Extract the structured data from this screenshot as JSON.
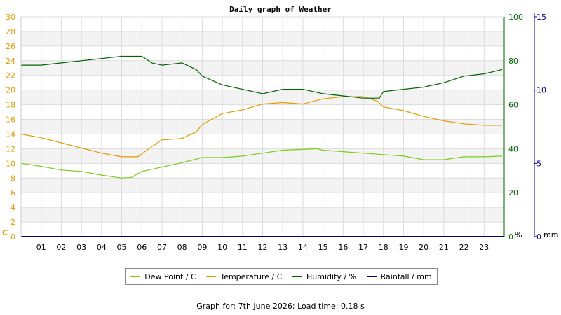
{
  "chart_data": {
    "type": "line",
    "title": "Daily graph of Weather",
    "x_ticks": [
      "01",
      "02",
      "03",
      "04",
      "05",
      "06",
      "07",
      "08",
      "09",
      "10",
      "11",
      "12",
      "13",
      "14",
      "15",
      "16",
      "17",
      "18",
      "19",
      "20",
      "21",
      "22",
      "23"
    ],
    "xlim": [
      0,
      24
    ],
    "axes": {
      "left": {
        "unit": "C",
        "ticks": [
          0,
          2,
          4,
          6,
          8,
          10,
          12,
          14,
          16,
          18,
          20,
          22,
          24,
          26,
          28,
          30
        ],
        "range": [
          0,
          30
        ],
        "color": "#e69a00"
      },
      "right1": {
        "unit": "%",
        "ticks": [
          0,
          20,
          40,
          60,
          80,
          100
        ],
        "range": [
          0,
          100
        ],
        "color": "#006400"
      },
      "right2": {
        "unit": "mm",
        "ticks": [
          0,
          5,
          10,
          15
        ],
        "range": [
          0,
          15
        ],
        "color": "#00008b"
      }
    },
    "series": [
      {
        "name": "Dew Point / C",
        "axis": "left",
        "color": "#7ccc1a",
        "x": [
          0,
          1,
          2,
          3,
          4,
          4.5,
          5,
          5.5,
          6,
          7,
          8,
          9,
          10,
          11,
          12,
          13,
          14,
          14.7,
          15,
          16,
          17,
          18,
          19,
          20,
          21,
          22,
          23,
          23.9
        ],
        "y": [
          10,
          9.6,
          9.1,
          8.9,
          8.4,
          8.2,
          8.0,
          8.1,
          8.9,
          9.5,
          10.1,
          10.8,
          10.8,
          11.0,
          11.4,
          11.8,
          11.9,
          12.0,
          11.8,
          11.6,
          11.4,
          11.2,
          11.0,
          10.5,
          10.5,
          10.9,
          10.9,
          11.0
        ]
      },
      {
        "name": "Temperature / C",
        "axis": "left",
        "color": "#e69a00",
        "x": [
          0,
          1,
          2,
          3,
          4,
          5,
          5.8,
          6.5,
          7,
          8,
          8.7,
          9,
          10,
          11,
          12,
          13,
          14,
          15,
          16,
          17,
          17.7,
          18,
          19,
          20,
          21,
          22,
          23,
          23.9
        ],
        "y": [
          14.0,
          13.5,
          12.8,
          12.1,
          11.4,
          10.9,
          10.9,
          12.3,
          13.2,
          13.4,
          14.3,
          15.3,
          16.8,
          17.3,
          18.1,
          18.3,
          18.1,
          18.8,
          19.1,
          19.1,
          18.5,
          17.7,
          17.2,
          16.4,
          15.8,
          15.4,
          15.2,
          15.2
        ]
      },
      {
        "name": "Humidity / %",
        "axis": "right1",
        "color": "#006400",
        "x": [
          0,
          1,
          2,
          3,
          4,
          5,
          6,
          6.5,
          7,
          8,
          8.7,
          9,
          10,
          11,
          12,
          13,
          14,
          15,
          16,
          17,
          17.8,
          18,
          19,
          20,
          21,
          22,
          23,
          23.9
        ],
        "y": [
          78,
          78,
          79,
          80,
          81,
          82,
          82,
          79,
          78,
          79,
          76,
          73,
          69,
          67,
          65,
          67,
          67,
          65,
          64,
          63,
          63,
          66,
          67,
          68,
          70,
          73,
          74,
          76
        ]
      },
      {
        "name": "Rainfall / mm",
        "axis": "right2",
        "color": "#00008b",
        "x": [
          0,
          24
        ],
        "y": [
          0,
          0
        ]
      }
    ],
    "legend": "bottom"
  },
  "footer": {
    "date": "Graph for: 7th June 2026; Load time: 0.18 s"
  }
}
